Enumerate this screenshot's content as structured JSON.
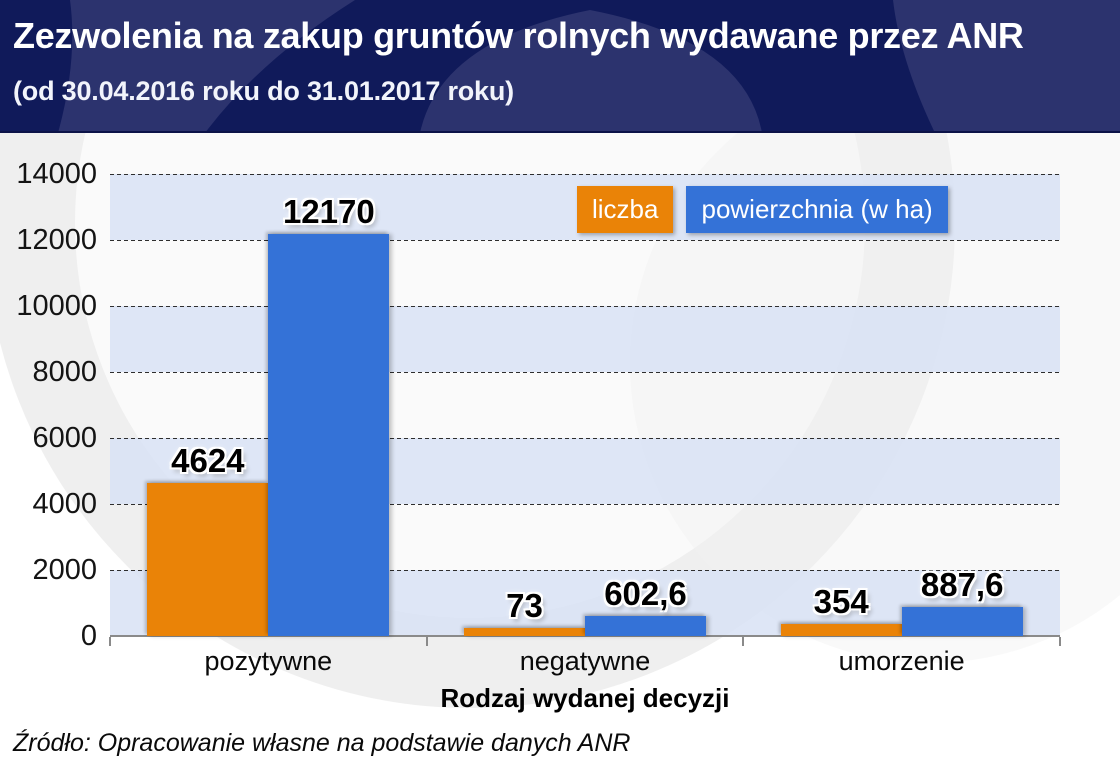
{
  "header": {
    "title": "Zezwolenia na zakup gruntów rolnych wydawane przez ANR",
    "subtitle": "(od 30.04.2016 roku do 31.01.2017 roku)"
  },
  "source_note": "Źródło: Opracowanie własne na podstawie danych ANR",
  "colors": {
    "header_background": "#101a5a",
    "header_watermark": "#2c336e",
    "band": "#d8e2f4",
    "watermark": "#ececec",
    "series_liczba": "#ea8307",
    "series_powierzchnia": "#3472d7",
    "gridline": "#2e2e2e",
    "axis": "#8a8a8a",
    "text": "#0a0a0a",
    "title_text": "#ffffff"
  },
  "chart_data": {
    "type": "bar",
    "title": "Zezwolenia na zakup gruntów rolnych wydawane przez ANR",
    "subtitle": "(od 30.04.2016 roku do 31.01.2017 roku)",
    "categories": [
      "pozytywne",
      "negatywne",
      "umorzenie"
    ],
    "series": [
      {
        "name": "liczba",
        "color": "#ea8307",
        "values": [
          4624,
          73,
          354
        ],
        "value_labels": [
          "4624",
          "73",
          "354"
        ]
      },
      {
        "name": "powierzchnia (w ha)",
        "color": "#3472d7",
        "values": [
          12170,
          602.6,
          887.6
        ],
        "value_labels": [
          "12170",
          "602,6",
          "887,6"
        ]
      }
    ],
    "xlabel": "Rodzaj wydanej decyzji",
    "ylabel": "",
    "ylim": [
      0,
      14000
    ],
    "ytick_interval": 2000,
    "yticks": [
      0,
      2000,
      4000,
      6000,
      8000,
      10000,
      12000,
      14000
    ],
    "grid": "horizontal-dashed",
    "plot_background": "alternating-light-blue-bands",
    "legend": [
      "liczba",
      "powierzchnia (w ha)"
    ],
    "legend_position": "top-right-inside"
  }
}
